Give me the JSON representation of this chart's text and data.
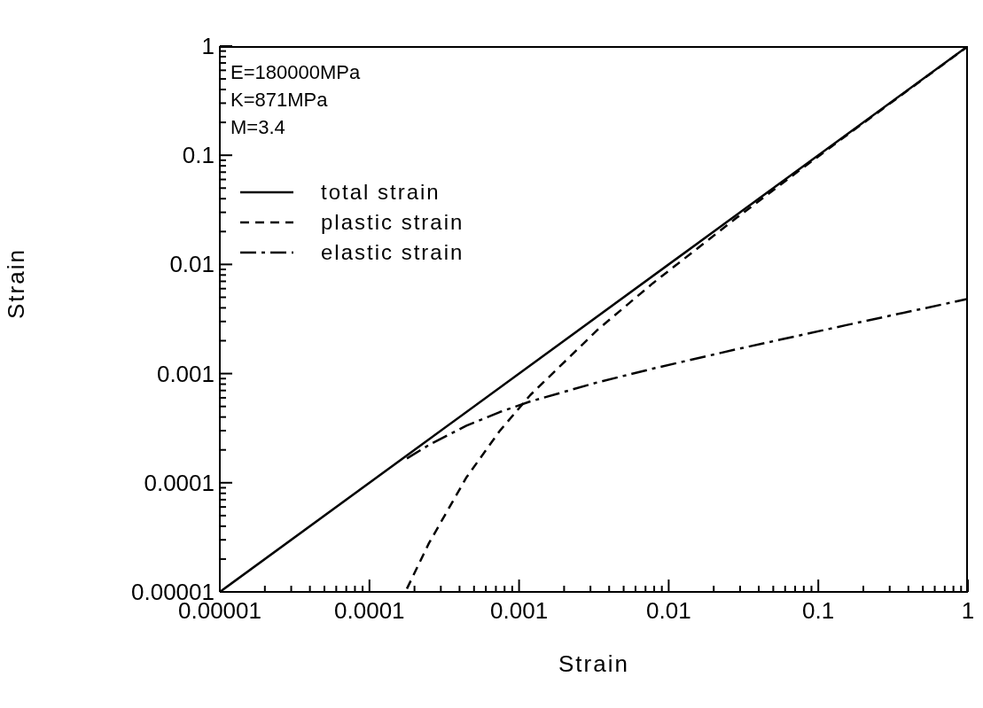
{
  "chart_data": {
    "type": "line",
    "xlabel": "Strain",
    "ylabel": "Strain",
    "annotations": [
      "E=180000MPa",
      "K=871MPa",
      "M=3.4"
    ],
    "xlim": [
      1e-05,
      1
    ],
    "ylim": [
      1e-05,
      1
    ],
    "log": "xy",
    "grid": false,
    "legend": "top left",
    "marker": "none",
    "xticks": [
      {
        "value": 1e-05,
        "label": "0.00001"
      },
      {
        "value": 2e-05,
        "label": null
      },
      {
        "value": 3e-05,
        "label": null
      },
      {
        "value": 4e-05,
        "label": null
      },
      {
        "value": 5e-05,
        "label": null
      },
      {
        "value": 6e-05,
        "label": null
      },
      {
        "value": 7e-05,
        "label": null
      },
      {
        "value": 8e-05,
        "label": null
      },
      {
        "value": 9e-05,
        "label": null
      },
      {
        "value": 0.0001,
        "label": "0.0001"
      },
      {
        "value": 0.0002,
        "label": null
      },
      {
        "value": 0.0003,
        "label": null
      },
      {
        "value": 0.0004,
        "label": null
      },
      {
        "value": 0.0005,
        "label": null
      },
      {
        "value": 0.0006,
        "label": null
      },
      {
        "value": 0.0007,
        "label": null
      },
      {
        "value": 0.0008,
        "label": null
      },
      {
        "value": 0.0009,
        "label": null
      },
      {
        "value": 0.001,
        "label": "0.001"
      },
      {
        "value": 0.002,
        "label": null
      },
      {
        "value": 0.003,
        "label": null
      },
      {
        "value": 0.004,
        "label": null
      },
      {
        "value": 0.005,
        "label": null
      },
      {
        "value": 0.006,
        "label": null
      },
      {
        "value": 0.007,
        "label": null
      },
      {
        "value": 0.008,
        "label": null
      },
      {
        "value": 0.009,
        "label": null
      },
      {
        "value": 0.01,
        "label": "0.01"
      },
      {
        "value": 0.02,
        "label": null
      },
      {
        "value": 0.03,
        "label": null
      },
      {
        "value": 0.04,
        "label": null
      },
      {
        "value": 0.05,
        "label": null
      },
      {
        "value": 0.06,
        "label": null
      },
      {
        "value": 0.07,
        "label": null
      },
      {
        "value": 0.08,
        "label": null
      },
      {
        "value": 0.09,
        "label": null
      },
      {
        "value": 0.1,
        "label": "0.1"
      },
      {
        "value": 0.2,
        "label": null
      },
      {
        "value": 0.3,
        "label": null
      },
      {
        "value": 0.4,
        "label": null
      },
      {
        "value": 0.5,
        "label": null
      },
      {
        "value": 0.6,
        "label": null
      },
      {
        "value": 0.7,
        "label": null
      },
      {
        "value": 0.8,
        "label": null
      },
      {
        "value": 0.9,
        "label": null
      },
      1
    ],
    "yticks": [
      {
        "value": 1e-05,
        "label": "0.00001"
      },
      {
        "value": 2e-05,
        "label": null
      },
      {
        "value": 3e-05,
        "label": null
      },
      {
        "value": 4e-05,
        "label": null
      },
      {
        "value": 5e-05,
        "label": null
      },
      {
        "value": 6e-05,
        "label": null
      },
      {
        "value": 7e-05,
        "label": null
      },
      {
        "value": 8e-05,
        "label": null
      },
      {
        "value": 9e-05,
        "label": null
      },
      {
        "value": 0.0001,
        "label": "0.0001"
      },
      {
        "value": 0.0002,
        "label": null
      },
      {
        "value": 0.0003,
        "label": null
      },
      {
        "value": 0.0004,
        "label": null
      },
      {
        "value": 0.0005,
        "label": null
      },
      {
        "value": 0.0006,
        "label": null
      },
      {
        "value": 0.0007,
        "label": null
      },
      {
        "value": 0.0008,
        "label": null
      },
      {
        "value": 0.0009,
        "label": null
      },
      {
        "value": 0.001,
        "label": "0.001"
      },
      {
        "value": 0.002,
        "label": null
      },
      {
        "value": 0.003,
        "label": null
      },
      {
        "value": 0.004,
        "label": null
      },
      {
        "value": 0.005,
        "label": null
      },
      {
        "value": 0.006,
        "label": null
      },
      {
        "value": 0.007,
        "label": null
      },
      {
        "value": 0.008,
        "label": null
      },
      {
        "value": 0.009,
        "label": null
      },
      {
        "value": 0.01,
        "label": "0.01"
      },
      {
        "value": 0.02,
        "label": null
      },
      {
        "value": 0.03,
        "label": null
      },
      {
        "value": 0.04,
        "label": null
      },
      {
        "value": 0.05,
        "label": null
      },
      {
        "value": 0.06,
        "label": null
      },
      {
        "value": 0.07,
        "label": null
      },
      {
        "value": 0.08,
        "label": null
      },
      {
        "value": 0.09,
        "label": null
      },
      {
        "value": 0.1,
        "label": "0.1"
      },
      {
        "value": 0.2,
        "label": null
      },
      {
        "value": 0.3,
        "label": null
      },
      {
        "value": 0.4,
        "label": null
      },
      {
        "value": 0.5,
        "label": null
      },
      {
        "value": 0.6,
        "label": null
      },
      {
        "value": 0.7,
        "label": null
      },
      {
        "value": 0.8,
        "label": null
      },
      {
        "value": 0.9,
        "label": null
      },
      1
    ],
    "series": [
      {
        "name": "total strain",
        "color": "#000000",
        "line_style": "solid",
        "x": [
          1e-05,
          1
        ],
        "values": [
          1e-05,
          1
        ]
      },
      {
        "name": "plastic strain",
        "color": "#000000",
        "line_style": "dashed",
        "x": [
          0.000178,
          0.00025,
          0.000445,
          0.000742,
          0.00119,
          0.00336,
          0.00783,
          0.0284,
          0.0731,
          0.154,
          0.48,
          0.925,
          1
        ],
        "values": [
          1.07e-05,
          2.8e-05,
          0.000112,
          0.000298,
          0.000637,
          0.00253,
          0.00672,
          0.0267,
          0.0709,
          0.1515,
          0.476,
          0.92,
          0.995
        ]
      },
      {
        "name": "elastic strain",
        "color": "#000000",
        "line_style": "dashdot",
        "x": [
          0.000178,
          0.00025,
          0.000445,
          0.000742,
          0.00119,
          0.00336,
          0.00783,
          0.0284,
          0.0731,
          0.154,
          0.48,
          0.925,
          1
        ],
        "values": [
          0.000167,
          0.000222,
          0.000333,
          0.000444,
          0.000556,
          0.000833,
          0.00111,
          0.00167,
          0.00222,
          0.00278,
          0.00389,
          0.00472,
          0.00483
        ]
      }
    ]
  }
}
